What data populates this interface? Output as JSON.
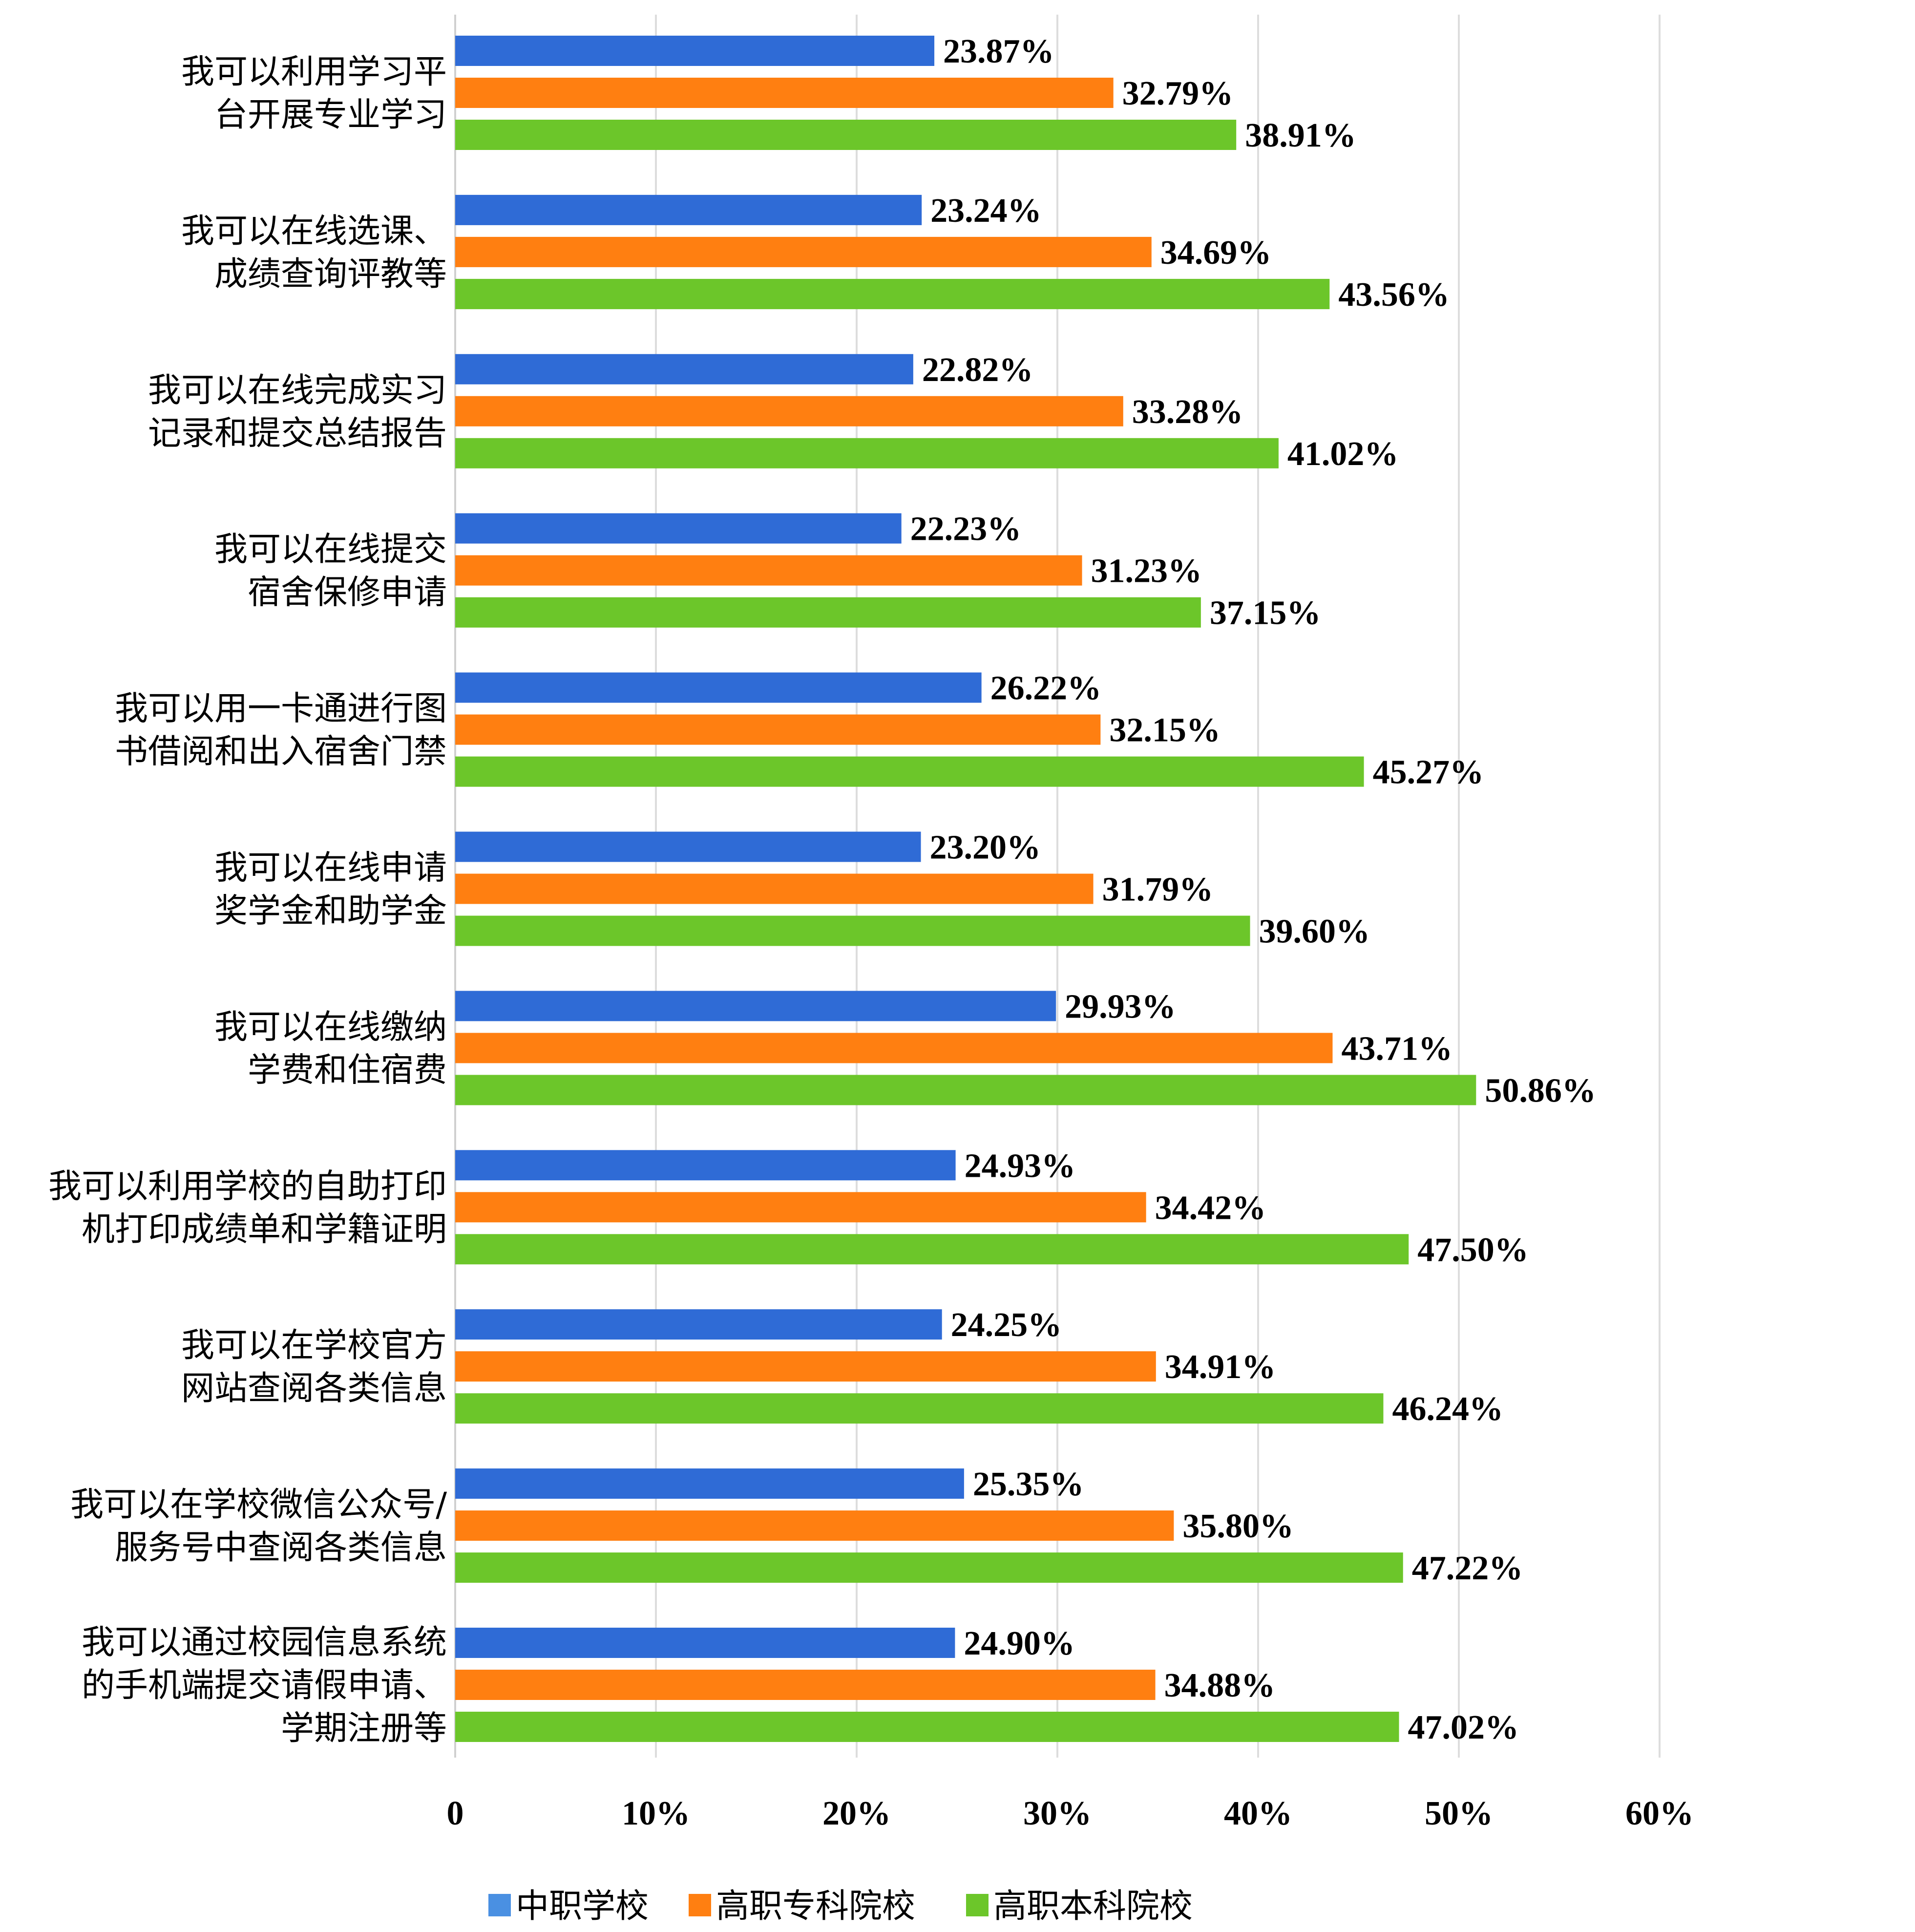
{
  "chart_data": {
    "type": "bar",
    "orientation": "horizontal",
    "categories": [
      [
        "我可以利用学习平",
        "台开展专业学习"
      ],
      [
        "我可以在线选课、",
        "成绩查询评教等"
      ],
      [
        "我可以在线完成实习",
        "记录和提交总结报告"
      ],
      [
        "我可以在线提交",
        "宿舍保修申请"
      ],
      [
        "我可以用一卡通进行图",
        "书借阅和出入宿舍门禁"
      ],
      [
        "我可以在线申请",
        "奖学金和助学金"
      ],
      [
        "我可以在线缴纳",
        "学费和住宿费"
      ],
      [
        "我可以利用学校的自助打印",
        "机打印成绩单和学籍证明"
      ],
      [
        "我可以在学校官方",
        "网站查阅各类信息"
      ],
      [
        "我可以在学校微信公众号/",
        "服务号中查阅各类信息"
      ],
      [
        "我可以通过校园信息系统",
        "的手机端提交请假申请、",
        "学期注册等"
      ]
    ],
    "series": [
      {
        "name": "中职学校",
        "color": "#2F6BD6",
        "values": [
          23.87,
          23.24,
          22.82,
          22.23,
          26.22,
          23.2,
          29.93,
          24.93,
          24.25,
          25.35,
          24.9
        ],
        "labels": [
          "23.87%",
          "23.24%",
          "22.82%",
          "22.23%",
          "26.22%",
          "23.20%",
          "29.93%",
          "24.93%",
          "24.25%",
          "25.35%",
          "24.90%"
        ]
      },
      {
        "name": "高职专科院校",
        "color": "#FF7F11",
        "values": [
          32.79,
          34.69,
          33.28,
          31.23,
          32.15,
          31.79,
          43.71,
          34.42,
          34.91,
          35.8,
          34.88
        ],
        "labels": [
          "32.79%",
          "34.69%",
          "33.28%",
          "31.23%",
          "32.15%",
          "31.79%",
          "43.71%",
          "34.42%",
          "34.91%",
          "35.80%",
          "34.88%"
        ]
      },
      {
        "name": "高职本科院校",
        "color": "#6CC62A",
        "values": [
          38.91,
          43.56,
          41.02,
          37.15,
          45.27,
          39.6,
          50.86,
          47.5,
          46.24,
          47.22,
          47.02
        ],
        "labels": [
          "38.91%",
          "43.56%",
          "41.02%",
          "37.15%",
          "45.27%",
          "39.60%",
          "50.86%",
          "47.50%",
          "46.24%",
          "47.22%",
          "47.02%"
        ]
      }
    ],
    "xticks": [
      "0",
      "10%",
      "20%",
      "30%",
      "40%",
      "50%",
      "60%"
    ],
    "xlim": [
      0,
      60
    ],
    "grid": true,
    "legend_position": "bottom-center",
    "legend_marker_color": "#4A90E2"
  }
}
